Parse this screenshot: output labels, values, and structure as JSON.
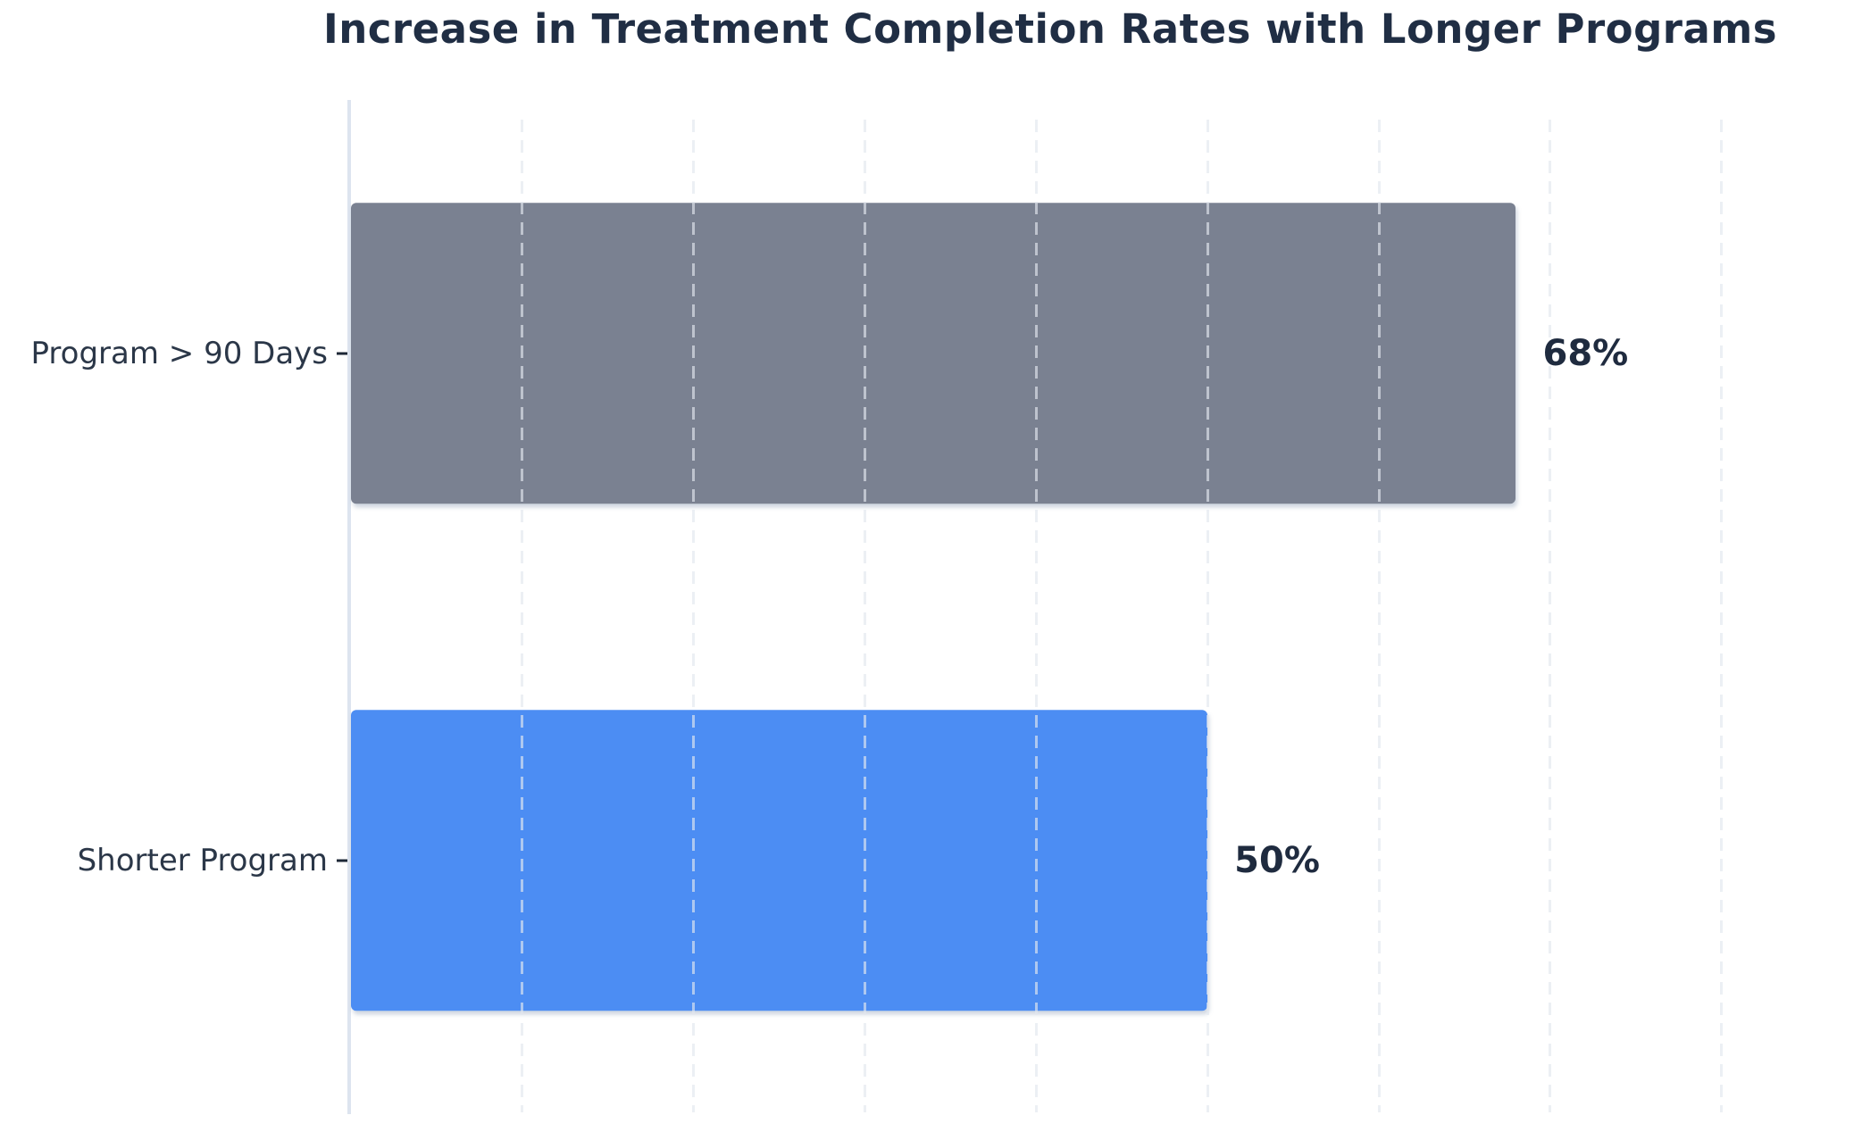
{
  "chart_data": {
    "type": "bar",
    "orientation": "horizontal",
    "title": "Increase in Treatment Completion Rates with Longer Programs",
    "categories": [
      "Program > 90 Days",
      "Shorter Program"
    ],
    "values": [
      68,
      50
    ],
    "value_labels": [
      "68%",
      "50%"
    ],
    "series": [
      {
        "name": "Program > 90 Days",
        "value": 68,
        "label": "68%",
        "color": "#7a8191"
      },
      {
        "name": "Shorter Program",
        "value": 50,
        "label": "50%",
        "color": "#4c8df3"
      }
    ],
    "xlabel": "",
    "ylabel": "",
    "xlim": [
      0,
      88.2
    ],
    "grid_x_ticks": [
      10,
      20,
      30,
      40,
      50,
      60,
      70,
      80
    ],
    "grid_style": "dashed-vertical",
    "legend": "none",
    "axis_tick_labels_visible": false
  },
  "colors": {
    "background": "#ffffff",
    "title": "#202e44",
    "category_label": "#2b3748",
    "value_label": "#1f2b3f",
    "axis_line": "#dde4ef",
    "gridline": "#e2e7ee",
    "bar_gray": "#7a8191",
    "bar_blue": "#4c8df3"
  }
}
